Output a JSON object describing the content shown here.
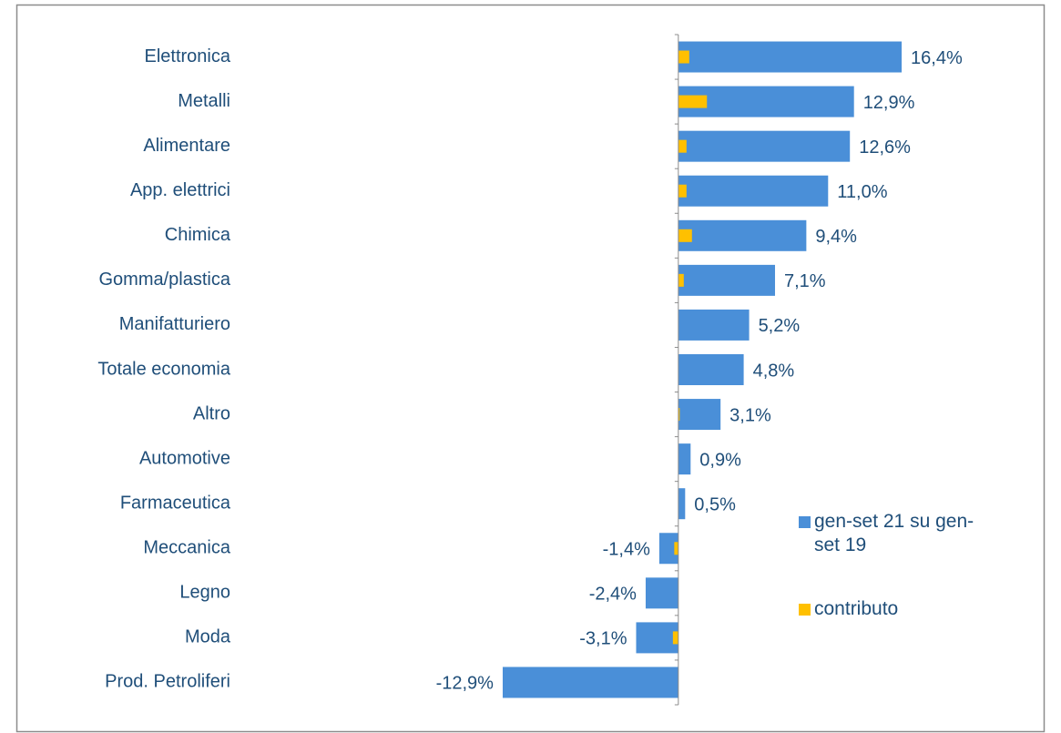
{
  "chart_data": {
    "type": "bar",
    "orientation": "horizontal",
    "categories": [
      "Elettronica",
      "Metalli",
      "Alimentare",
      "App. elettrici",
      "Chimica",
      "Gomma/plastica",
      "Manifatturiero",
      "Totale economia",
      "Altro",
      "Automotive",
      "Farmaceutica",
      "Meccanica",
      "Legno",
      "Moda",
      "Prod. Petroliferi"
    ],
    "series": [
      {
        "name": "gen-set 21 su gen-set 19",
        "color": "#4a8fd8",
        "values": [
          16.4,
          12.9,
          12.6,
          11.0,
          9.4,
          7.1,
          5.2,
          4.8,
          3.1,
          0.9,
          0.5,
          -1.4,
          -2.4,
          -3.1,
          -12.9
        ],
        "value_labels": [
          "16,4%",
          "12,9%",
          "12,6%",
          "11,0%",
          "9,4%",
          "7,1%",
          "5,2%",
          "4,8%",
          "3,1%",
          "0,9%",
          "0,5%",
          "-1,4%",
          "-2,4%",
          "-3,1%",
          "-12,9%"
        ]
      },
      {
        "name": "contributo",
        "color": "#ffc000",
        "values": [
          0.8,
          2.1,
          0.6,
          0.6,
          1.0,
          0.4,
          0,
          0,
          0.1,
          0,
          0,
          -0.3,
          0,
          -0.4,
          0
        ]
      }
    ],
    "xlim": [
      -13.5,
      16.8
    ],
    "legend": "right"
  }
}
